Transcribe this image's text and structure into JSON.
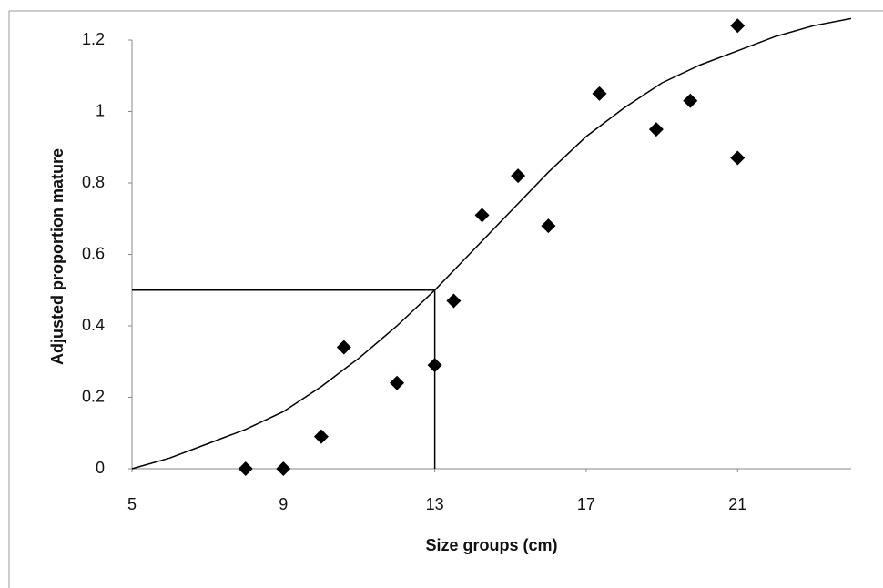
{
  "chart_data": {
    "type": "scatter",
    "x_label": "Size groups (cm)",
    "y_label": "Adjusted proportion mature",
    "xlim": [
      5,
      24
    ],
    "xticks": [
      5,
      9,
      13,
      17,
      21
    ],
    "ylim": [
      0,
      1.2
    ],
    "yticks": [
      0,
      0.2,
      0.4,
      0.6,
      0.8,
      1,
      1.2
    ],
    "color": "#000000",
    "points": {
      "x": [
        8,
        9,
        10,
        10.6,
        12,
        13,
        13.5,
        14.25,
        15.2,
        16,
        17.35,
        18.85,
        19.75,
        21,
        21
      ],
      "y": [
        0,
        0,
        0.09,
        0.34,
        0.24,
        0.29,
        0.47,
        0.71,
        0.82,
        0.68,
        1.05,
        0.95,
        1.03,
        0.87,
        1.24
      ]
    },
    "curve": {
      "x": [
        5,
        6,
        7,
        8,
        9,
        10,
        11,
        12,
        13,
        14,
        15,
        16,
        17,
        18,
        19,
        20,
        21,
        22,
        23,
        24
      ],
      "y": [
        0,
        0.03,
        0.07,
        0.11,
        0.16,
        0.23,
        0.31,
        0.4,
        0.5,
        0.61,
        0.72,
        0.83,
        0.93,
        1.01,
        1.08,
        1.13,
        1.17,
        1.21,
        1.24,
        1.26
      ]
    },
    "reference": {
      "x": 13,
      "y": 0.5
    }
  }
}
